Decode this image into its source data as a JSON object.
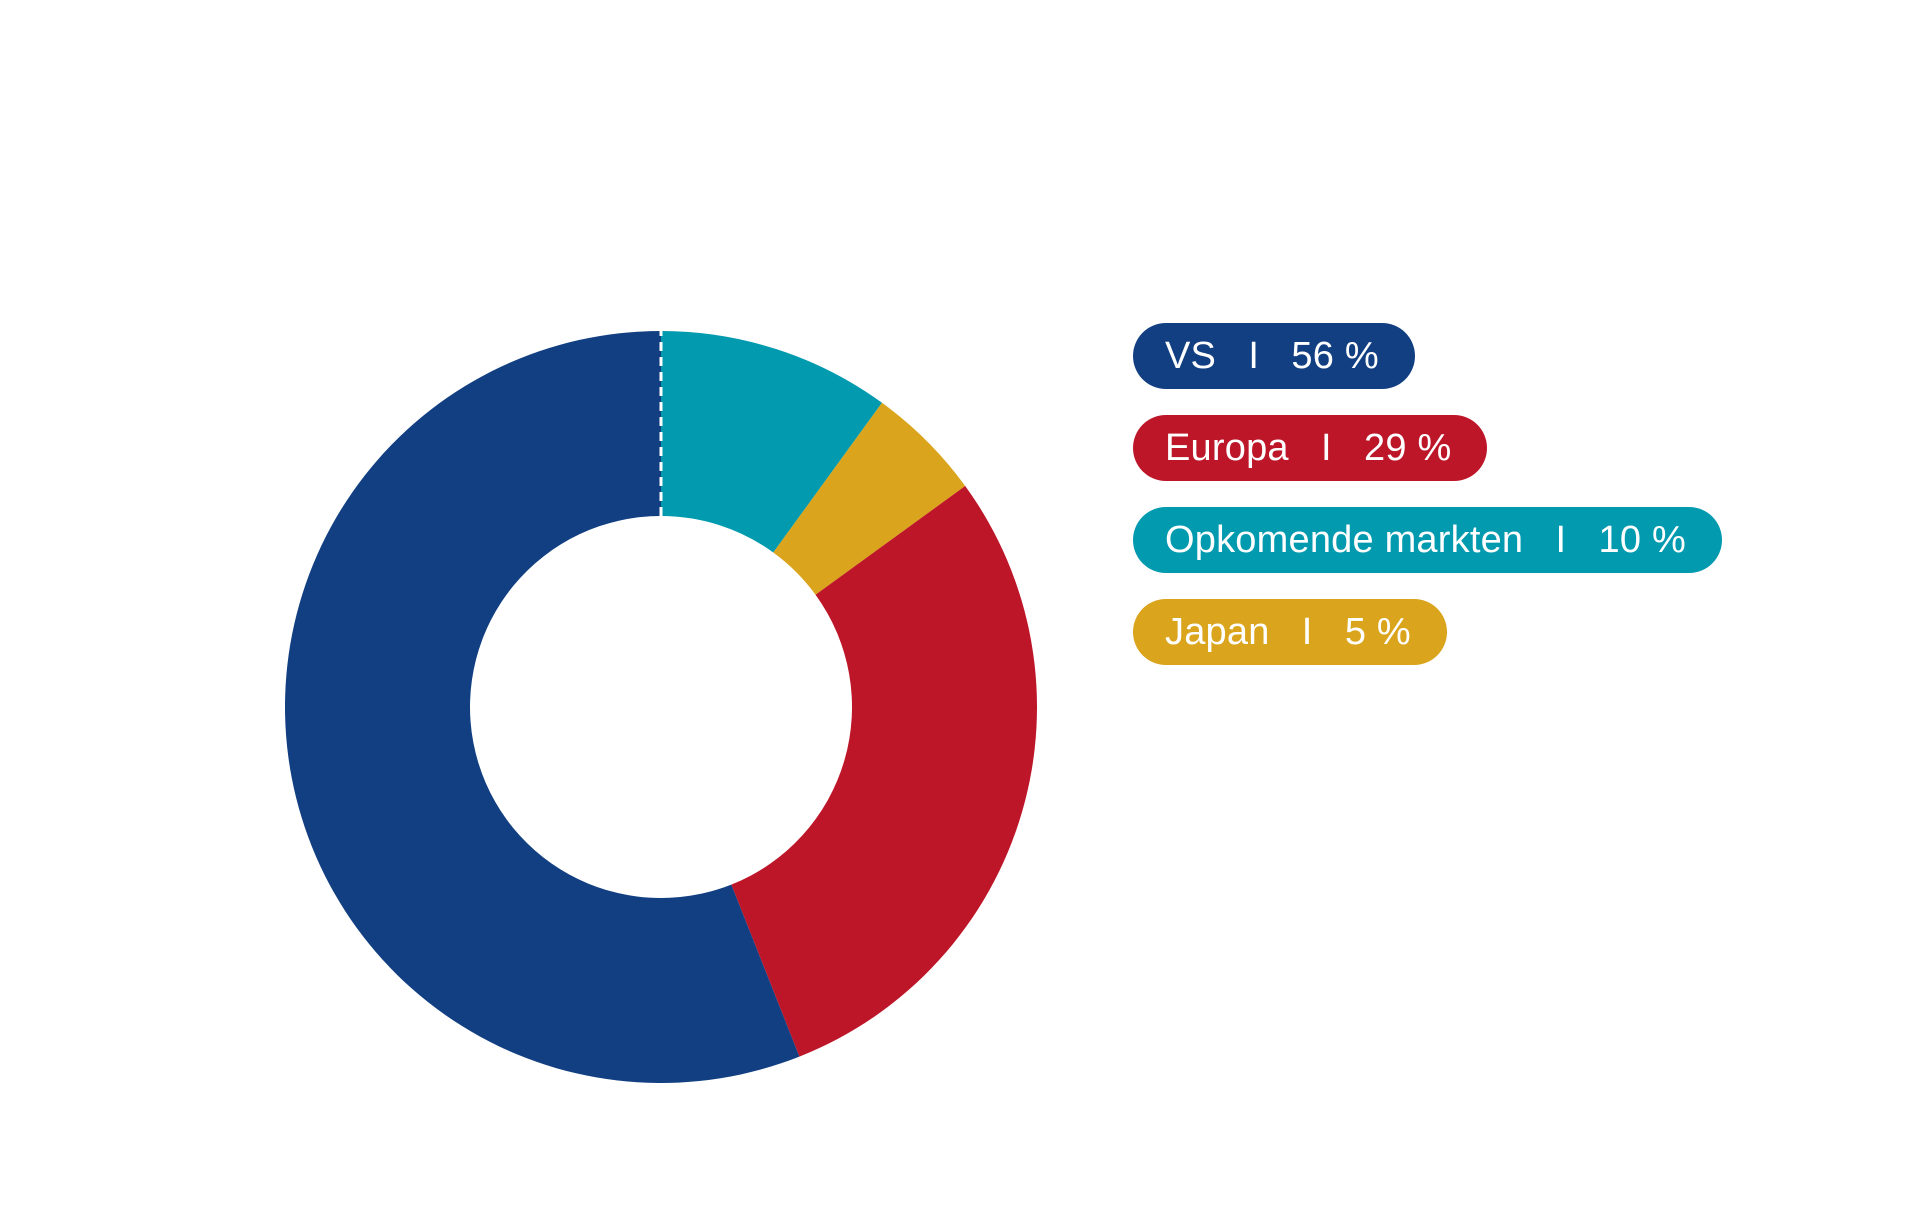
{
  "chart_data": {
    "type": "pie",
    "variant": "donut",
    "start": "top",
    "direction": "clockwise",
    "slice_order": [
      "Opkomende markten",
      "Japan",
      "Europa",
      "VS"
    ],
    "labels": [
      "VS",
      "Europa",
      "Opkomende markten",
      "Japan"
    ],
    "values": [
      56,
      29,
      10,
      5
    ],
    "unit": "%",
    "value_labels": [
      "56 %",
      "29 %",
      "10 %",
      "5 %"
    ],
    "colors": {
      "VS": "#123f82",
      "Europa": "#be1629",
      "Opkomende markten": "#029aaf",
      "Japan": "#daa41c"
    },
    "legend_position": "right",
    "separator": "I"
  }
}
